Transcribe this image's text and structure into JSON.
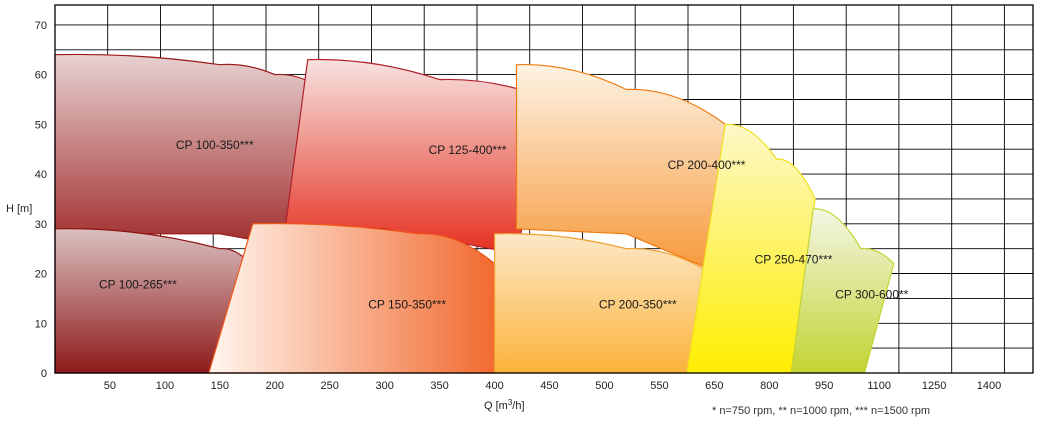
{
  "chart_data": {
    "type": "area",
    "title": "",
    "xlabel": "Q [m³/h]",
    "xlabel_base": "Q [m",
    "xlabel_sup": "3",
    "xlabel_end": "/h]",
    "ylabel": "H [m]",
    "x_ticks": [
      "50",
      "100",
      "150",
      "200",
      "250",
      "300",
      "350",
      "400",
      "450",
      "500",
      "550",
      "650",
      "800",
      "950",
      "1100",
      "1250",
      "1400"
    ],
    "y_ticks": [
      "0",
      "10",
      "20",
      "30",
      "40",
      "50",
      "60",
      "70"
    ],
    "ylim": [
      0,
      74
    ],
    "grid": true,
    "footnote": "* n=750 rpm, ** n=1000 rpm, *** n=1500 rpm",
    "series": [
      {
        "name": "CP 100-350***",
        "colors": [
          "#e8d2d2",
          "#9c2222"
        ],
        "gradient": "vertical",
        "stroke": "#9c1a1a",
        "top": [
          [
            0,
            64
          ],
          [
            150,
            62
          ],
          [
            200,
            60
          ],
          [
            250,
            56
          ]
        ],
        "bottom": [
          [
            0,
            28
          ],
          [
            150,
            28
          ],
          [
            200,
            26
          ],
          [
            250,
            23
          ]
        ]
      },
      {
        "name": "CP 125-400***",
        "colors": [
          "#f7e2e0",
          "#e5301f"
        ],
        "gradient": "vertical",
        "stroke": "#b0202a",
        "top": [
          [
            230,
            63
          ],
          [
            350,
            59
          ],
          [
            450,
            55
          ]
        ],
        "bottom": [
          [
            210,
            30
          ],
          [
            300,
            29
          ],
          [
            420,
            24
          ]
        ]
      },
      {
        "name": "CP 200-400***",
        "colors": [
          "#fdf3e4",
          "#f79a3c"
        ],
        "gradient": "vertical",
        "stroke": "#f07a10",
        "top": [
          [
            420,
            62
          ],
          [
            520,
            57
          ],
          [
            680,
            50
          ]
        ],
        "bottom": [
          [
            420,
            29
          ],
          [
            520,
            28
          ],
          [
            640,
            21
          ]
        ]
      },
      {
        "name": "CP 100-265***",
        "colors": [
          "#dcc0c0",
          "#8e1a1a"
        ],
        "gradient": "vertical",
        "stroke": "#8e1414",
        "top": [
          [
            0,
            29
          ],
          [
            150,
            25
          ],
          [
            185,
            20
          ]
        ],
        "bottom": [
          [
            0,
            0
          ],
          [
            140,
            0
          ]
        ]
      },
      {
        "name": "CP 150-350***",
        "colors": [
          "#fff6ee",
          "#f05a1a"
        ],
        "gradient": "horizontal",
        "stroke": "#f0561a",
        "top": [
          [
            180,
            30
          ],
          [
            330,
            28
          ],
          [
            400,
            22
          ],
          [
            430,
            20
          ]
        ],
        "bottom": [
          [
            140,
            0
          ],
          [
            400,
            0
          ]
        ]
      },
      {
        "name": "CP 200-350***",
        "colors": [
          "#fde8c8",
          "#fbb33a"
        ],
        "gradient": "vertical",
        "stroke": "#f0a030",
        "top": [
          [
            400,
            28
          ],
          [
            520,
            25
          ],
          [
            630,
            21
          ]
        ],
        "bottom": [
          [
            400,
            0
          ],
          [
            600,
            0
          ]
        ]
      },
      {
        "name": "CP 250-470***",
        "colors": [
          "#fdf8c8",
          "#ffee00"
        ],
        "gradient": "vertical",
        "stroke": "#f0e020",
        "top": [
          [
            680,
            50
          ],
          [
            820,
            43
          ],
          [
            925,
            35
          ]
        ],
        "bottom": [
          [
            600,
            0
          ],
          [
            860,
            0
          ]
        ]
      },
      {
        "name": "CP 300-600**",
        "colors": [
          "#f4f6e4",
          "#c2d432"
        ],
        "gradient": "vertical",
        "stroke": "#c2d432",
        "top": [
          [
            920,
            33
          ],
          [
            1050,
            25
          ],
          [
            1140,
            22
          ]
        ],
        "bottom": [
          [
            860,
            0
          ],
          [
            1060,
            0
          ]
        ]
      }
    ],
    "label_anchors": [
      {
        "name": "CP 100-350***",
        "x": 110,
        "y": 45
      },
      {
        "name": "CP 125-400***",
        "x": 340,
        "y": 44
      },
      {
        "name": "CP 200-400***",
        "x": 565,
        "y": 41
      },
      {
        "name": "CP 100-265***",
        "x": 40,
        "y": 17
      },
      {
        "name": "CP 150-350***",
        "x": 285,
        "y": 13
      },
      {
        "name": "CP 200-350***",
        "x": 495,
        "y": 13
      },
      {
        "name": "CP 250-470***",
        "x": 760,
        "y": 22
      },
      {
        "name": "CP 300-600**",
        "x": 980,
        "y": 15
      }
    ]
  }
}
